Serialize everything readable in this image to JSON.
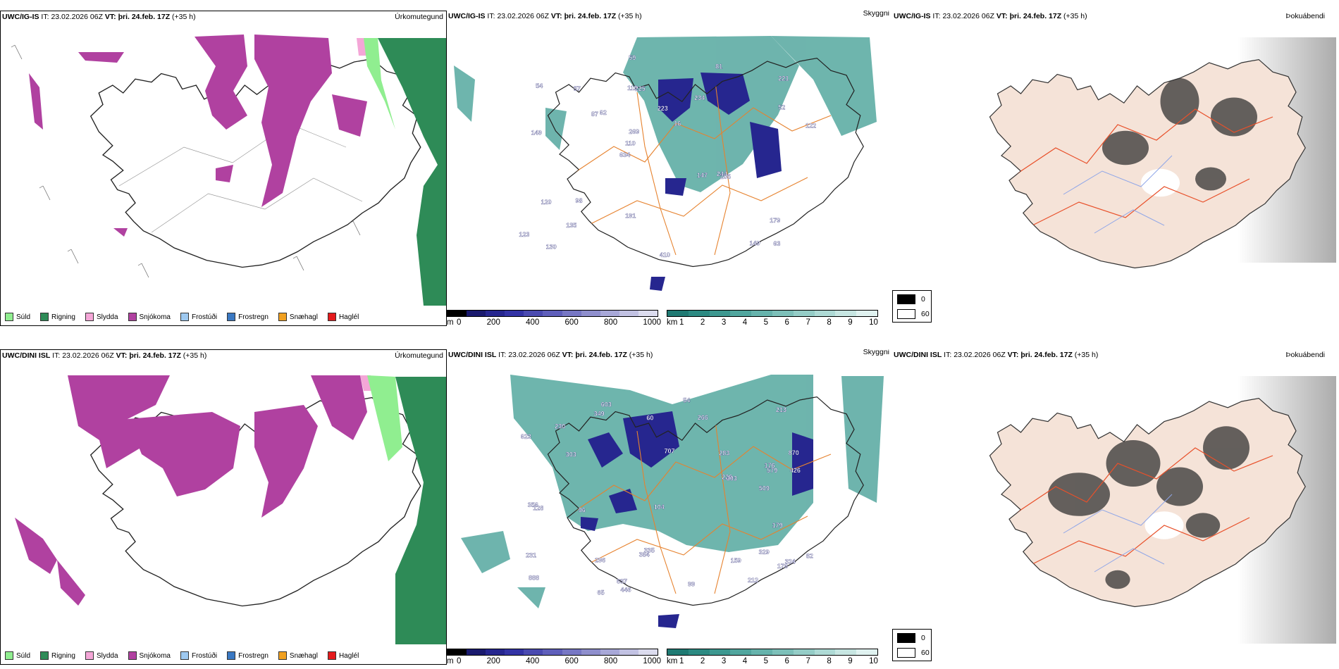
{
  "rows": [
    {
      "model": "UWC/IG-IS",
      "issue_label": "IT:",
      "issue_time": "23.02.2026 06Z",
      "valid_label": "VT:",
      "valid_time": "þri. 24.feb. 17Z",
      "lead": "(+35 h)",
      "cloud_labels": [
        "63",
        "149",
        "221",
        "634",
        "234",
        "130",
        "119",
        "223",
        "120",
        "62",
        "123",
        "135",
        "225",
        "16",
        "205",
        "54",
        "59",
        "122",
        "147",
        "52",
        "110",
        "191",
        "269",
        "57",
        "81",
        "98",
        "149",
        "179",
        "244",
        "410",
        "87"
      ]
    },
    {
      "model": "UWC/DINI ISL",
      "issue_label": "IT:",
      "issue_time": "23.02.2026 06Z",
      "valid_label": "VT:",
      "valid_time": "þri. 24.feb. 17Z",
      "lead": "(+35 h)",
      "cloud_labels": [
        "329",
        "870",
        "324",
        "707",
        "888",
        "603",
        "176",
        "296",
        "213",
        "303",
        "426",
        "623",
        "509",
        "446",
        "231",
        "230",
        "176",
        "349",
        "335",
        "579",
        "356",
        "128",
        "99",
        "226",
        "637",
        "384",
        "54",
        "266",
        "283",
        "82",
        "96",
        "159",
        "65",
        "104",
        "179",
        "212",
        "303",
        "60"
      ]
    }
  ],
  "panel_titles": {
    "precip": "Úrkomutegund",
    "clouds": "Skyggni",
    "fog": "Þokuábendi"
  },
  "precip_legend": [
    {
      "label": "Súld",
      "color": "#90ee90"
    },
    {
      "label": "Rigning",
      "color": "#2e8b57"
    },
    {
      "label": "Slydda",
      "color": "#f4a6d7"
    },
    {
      "label": "Snjókoma",
      "color": "#b041a0"
    },
    {
      "label": "Frostúði",
      "color": "#9ec9f0"
    },
    {
      "label": "Frostregn",
      "color": "#3a78c2"
    },
    {
      "label": "Snæhagl",
      "color": "#f0a020"
    },
    {
      "label": "Haglél",
      "color": "#e41a1c"
    }
  ],
  "cloud_base_scale": {
    "unit": "m",
    "ticks": [
      "0",
      "200",
      "400",
      "600",
      "800",
      "1000"
    ],
    "colors": [
      "#000000",
      "#1a1a6e",
      "#26268f",
      "#3333a5",
      "#4a4ab0",
      "#5f5fbb",
      "#7777c4",
      "#8f8fcd",
      "#a8a8d8",
      "#c2c2e3",
      "#dcdcee"
    ]
  },
  "visibility_scale": {
    "unit": "km",
    "ticks": [
      "1",
      "2",
      "3",
      "4",
      "5",
      "6",
      "7",
      "8",
      "9",
      "10"
    ],
    "colors": [
      "#1f7a73",
      "#2c8a82",
      "#3d9890",
      "#51a69e",
      "#66b3ac",
      "#7dc0b9",
      "#95cdc7",
      "#aedad5",
      "#c7e6e2",
      "#e0f2f0"
    ]
  },
  "fog_legend": {
    "black_label": "0",
    "white_label": "60"
  }
}
